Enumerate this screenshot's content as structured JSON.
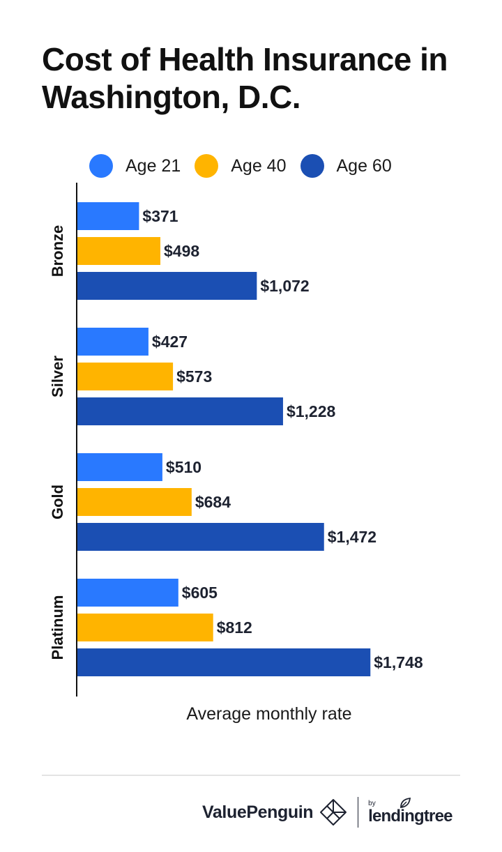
{
  "chart_data": {
    "type": "bar",
    "orientation": "horizontal",
    "title": "Cost of Health Insurance in Washington, D.C.",
    "xlabel": "Average monthly rate",
    "ylabel": "",
    "categories": [
      "Bronze",
      "Silver",
      "Gold",
      "Platinum"
    ],
    "series": [
      {
        "name": "Age 21",
        "color": "#2979ff",
        "values": [
          371,
          427,
          510,
          605
        ],
        "labels": [
          "$371",
          "$427",
          "$510",
          "$605"
        ]
      },
      {
        "name": "Age 40",
        "color": "#ffb400",
        "values": [
          498,
          573,
          684,
          812
        ],
        "labels": [
          "$498",
          "$573",
          "$684",
          "$812"
        ]
      },
      {
        "name": "Age 60",
        "color": "#1b4fb3",
        "values": [
          1072,
          1228,
          1472,
          1748
        ],
        "labels": [
          "$1,072",
          "$1,228",
          "$1,472",
          "$1,748"
        ]
      }
    ],
    "xlim": [
      0,
      2000
    ],
    "grid": false,
    "legend": "top",
    "label_color": "#1d2230",
    "axis_color": "#111111"
  },
  "footer": {
    "brand": "ValuePenguin",
    "partner_prefix": "by",
    "partner": "lendingtree",
    "brand_icon": "valuepenguin-logo-icon",
    "partner_icon": "lendingtree-leaf-icon"
  }
}
